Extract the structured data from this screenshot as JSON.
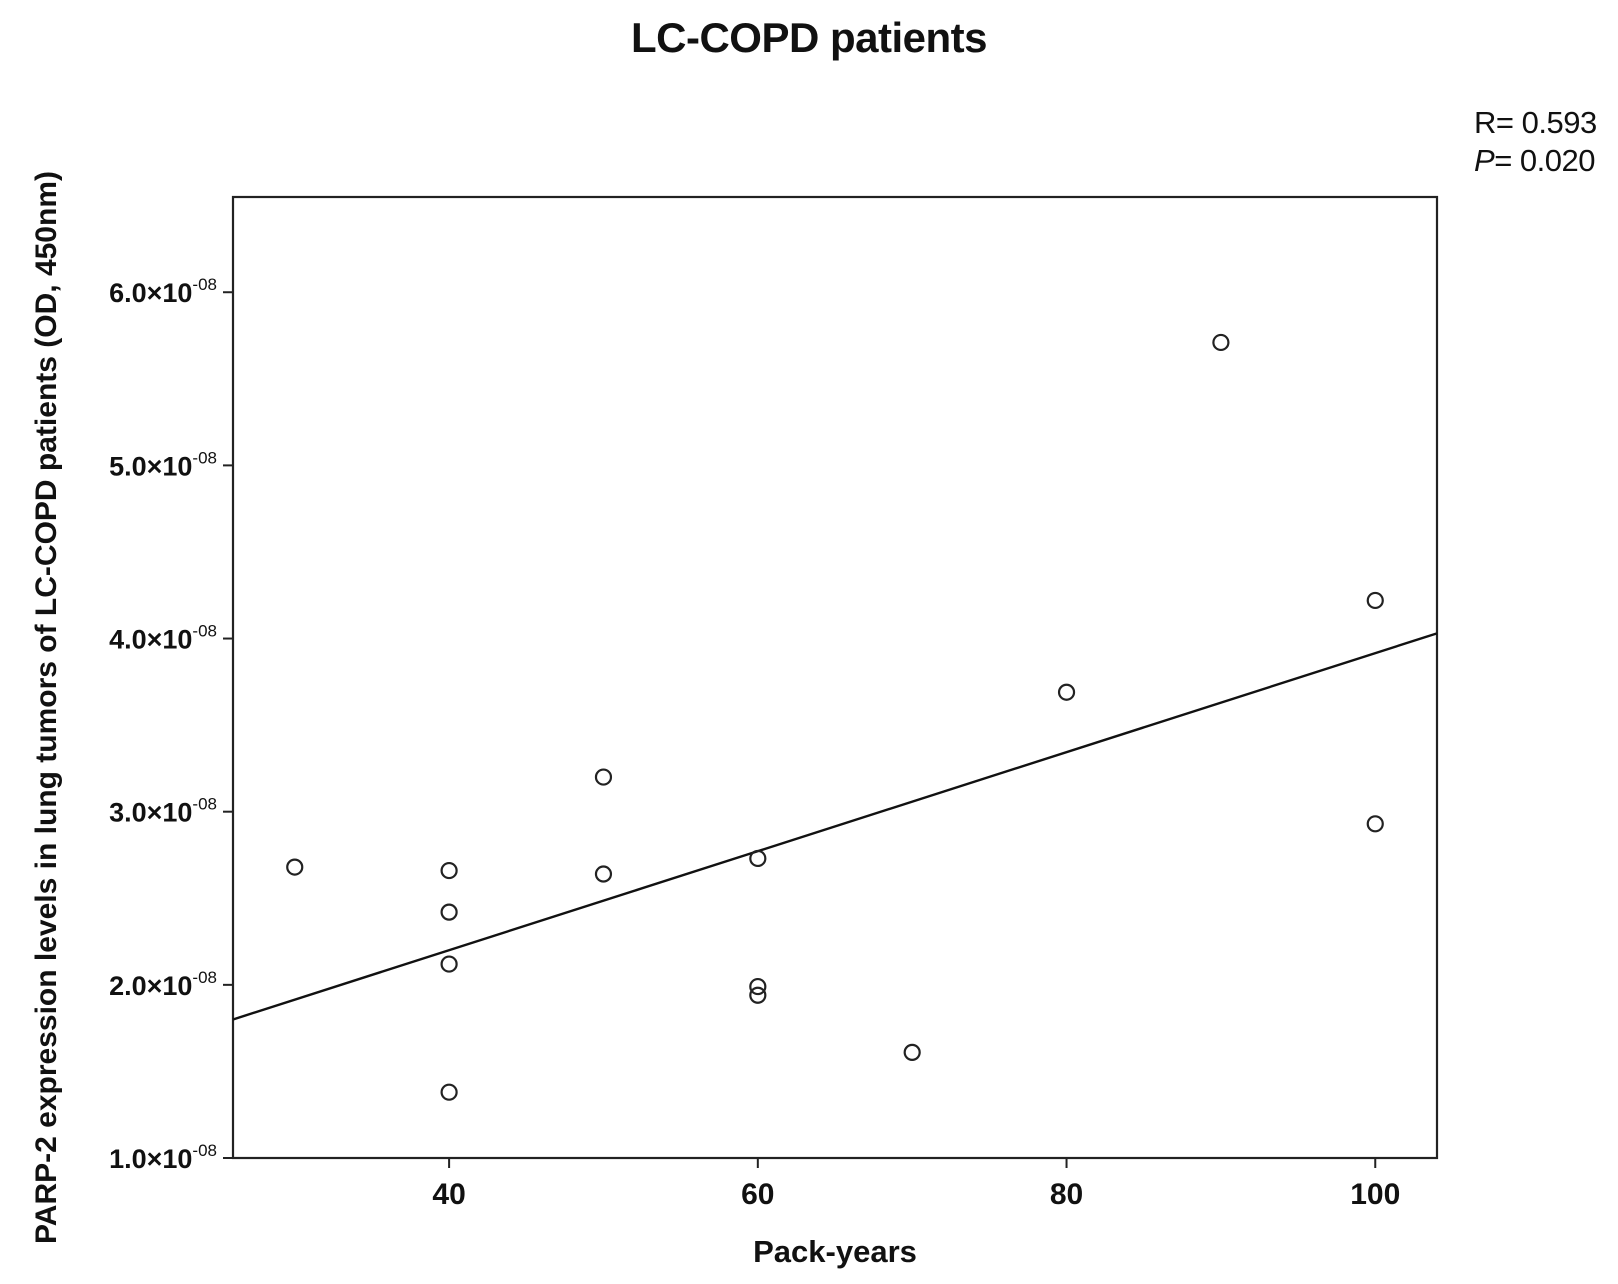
{
  "chart_data": {
    "type": "scatter",
    "title": "LC-COPD patients",
    "xlabel": "Pack-years",
    "ylabel": "PARP-2 expression levels in lung tumors of LC-COPD patients (OD, 450nm)",
    "xlim": [
      26,
      104
    ],
    "ylim": [
      1e-08,
      6.55e-08
    ],
    "x_ticks": [
      {
        "value": 40,
        "label": "40"
      },
      {
        "value": 60,
        "label": "60"
      },
      {
        "value": 80,
        "label": "80"
      },
      {
        "value": 100,
        "label": "100"
      }
    ],
    "y_ticks": [
      {
        "value": 1e-08,
        "mantissa": "1.0×10",
        "exponent": "-08"
      },
      {
        "value": 2e-08,
        "mantissa": "2.0×10",
        "exponent": "-08"
      },
      {
        "value": 3e-08,
        "mantissa": "3.0×10",
        "exponent": "-08"
      },
      {
        "value": 4e-08,
        "mantissa": "4.0×10",
        "exponent": "-08"
      },
      {
        "value": 5e-08,
        "mantissa": "5.0×10",
        "exponent": "-08"
      },
      {
        "value": 6e-08,
        "mantissa": "6.0×10",
        "exponent": "-08"
      }
    ],
    "points": [
      {
        "x": 30,
        "y": 2.68e-08
      },
      {
        "x": 40,
        "y": 2.66e-08
      },
      {
        "x": 40,
        "y": 2.42e-08
      },
      {
        "x": 40,
        "y": 2.12e-08
      },
      {
        "x": 40,
        "y": 1.38e-08
      },
      {
        "x": 50,
        "y": 3.2e-08
      },
      {
        "x": 50,
        "y": 2.64e-08
      },
      {
        "x": 60,
        "y": 2.73e-08
      },
      {
        "x": 60,
        "y": 1.99e-08
      },
      {
        "x": 60,
        "y": 1.94e-08
      },
      {
        "x": 70,
        "y": 1.61e-08
      },
      {
        "x": 80,
        "y": 3.69e-08
      },
      {
        "x": 90,
        "y": 5.71e-08
      },
      {
        "x": 100,
        "y": 4.22e-08
      },
      {
        "x": 100,
        "y": 2.93e-08
      }
    ],
    "fit_line": {
      "x": [
        26,
        104
      ],
      "y": [
        1.8e-08,
        4.03e-08
      ]
    },
    "grid": false,
    "legend": "none"
  },
  "stats": {
    "r_label": "R",
    "r_value": "= 0.593",
    "p_label": "P",
    "p_value": "= 0.020"
  }
}
